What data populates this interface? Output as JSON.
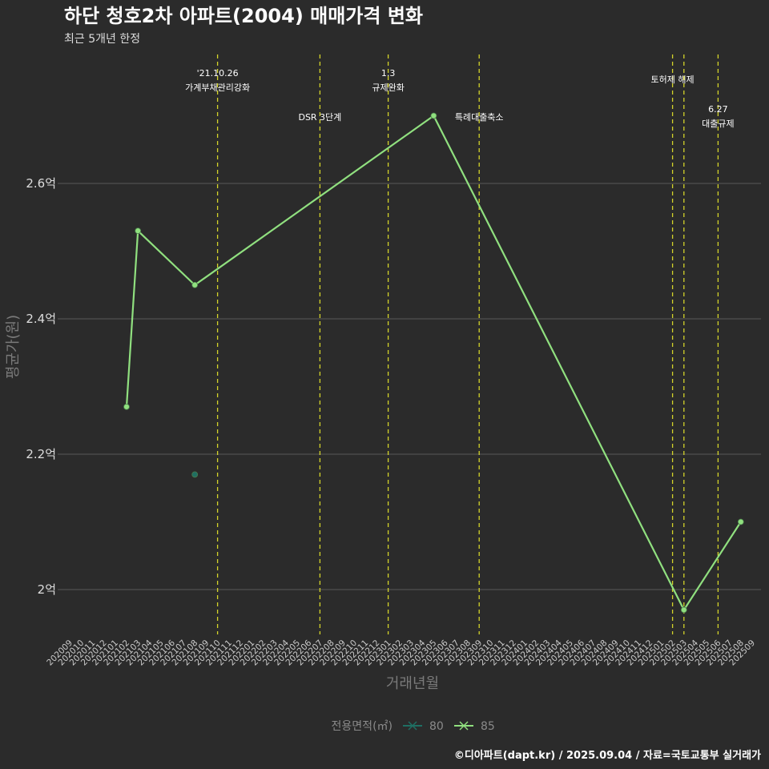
{
  "title": "하단 청호2차 아파트(2004) 매매가격 변화",
  "subtitle": "최근 5개년 한정",
  "caption": "©디아파트(dapt.kr) / 2025.09.04 / 자료=국토교통부 실거래가",
  "chart_data": {
    "type": "line",
    "title": "하단 청호2차 아파트(2004) 매매가격 변화",
    "subtitle": "최근 5개년 한정",
    "xlabel": "거래년월",
    "ylabel": "평균가(원)",
    "ylim": [
      1.94,
      2.78
    ],
    "yticks": [
      {
        "value": 2.0,
        "label": "2억"
      },
      {
        "value": 2.2,
        "label": "2.2억"
      },
      {
        "value": 2.4,
        "label": "2.4억"
      },
      {
        "value": 2.6,
        "label": "2.6억"
      }
    ],
    "categories": [
      "202009",
      "202010",
      "202011",
      "202012",
      "202101",
      "202102",
      "202103",
      "202104",
      "202105",
      "202106",
      "202107",
      "202108",
      "202109",
      "202110",
      "202111",
      "202112",
      "202201",
      "202202",
      "202203",
      "202204",
      "202205",
      "202206",
      "202207",
      "202208",
      "202209",
      "202210",
      "202211",
      "202212",
      "202301",
      "202302",
      "202303",
      "202304",
      "202305",
      "202306",
      "202307",
      "202308",
      "202309",
      "202310",
      "202311",
      "202312",
      "202401",
      "202402",
      "202403",
      "202404",
      "202405",
      "202406",
      "202407",
      "202408",
      "202409",
      "202410",
      "202411",
      "202412",
      "202501",
      "202502",
      "202503",
      "202504",
      "202505",
      "202506",
      "202507",
      "202508",
      "202509"
    ],
    "series": [
      {
        "name": "80",
        "color": "#1f6f63",
        "points": [
          {
            "x": "202108",
            "y": 2.17
          }
        ]
      },
      {
        "name": "85",
        "color": "#90e07f",
        "points": [
          {
            "x": "202102",
            "y": 2.27
          },
          {
            "x": "202103",
            "y": 2.53
          },
          {
            "x": "202108",
            "y": 2.45
          },
          {
            "x": "202305",
            "y": 2.7
          },
          {
            "x": "202503",
            "y": 1.97
          },
          {
            "x": "202508",
            "y": 2.1
          }
        ]
      }
    ],
    "vlines": [
      {
        "x": "202110",
        "lines": [
          "'21.10.26",
          "가계부채관리강화"
        ],
        "row": 0
      },
      {
        "x": "202207",
        "lines": [
          "DSR 3단계"
        ],
        "row": 1
      },
      {
        "x": "202301",
        "lines": [
          "1.3",
          "규제완화"
        ],
        "row": 0
      },
      {
        "x": "202309",
        "lines": [
          "특례대출축소"
        ],
        "row": 1
      },
      {
        "x": "202502",
        "lines": [
          "토허제 해제"
        ],
        "row": 0
      },
      {
        "x": "202503",
        "lines": [],
        "row": 0
      },
      {
        "x": "202506",
        "lines": [
          "6.27",
          "대출규제"
        ],
        "row": 2
      }
    ],
    "vline_color": "#d4d42a",
    "grid": true,
    "legend": {
      "title": "전용면적(㎡)",
      "position": "bottom"
    }
  }
}
